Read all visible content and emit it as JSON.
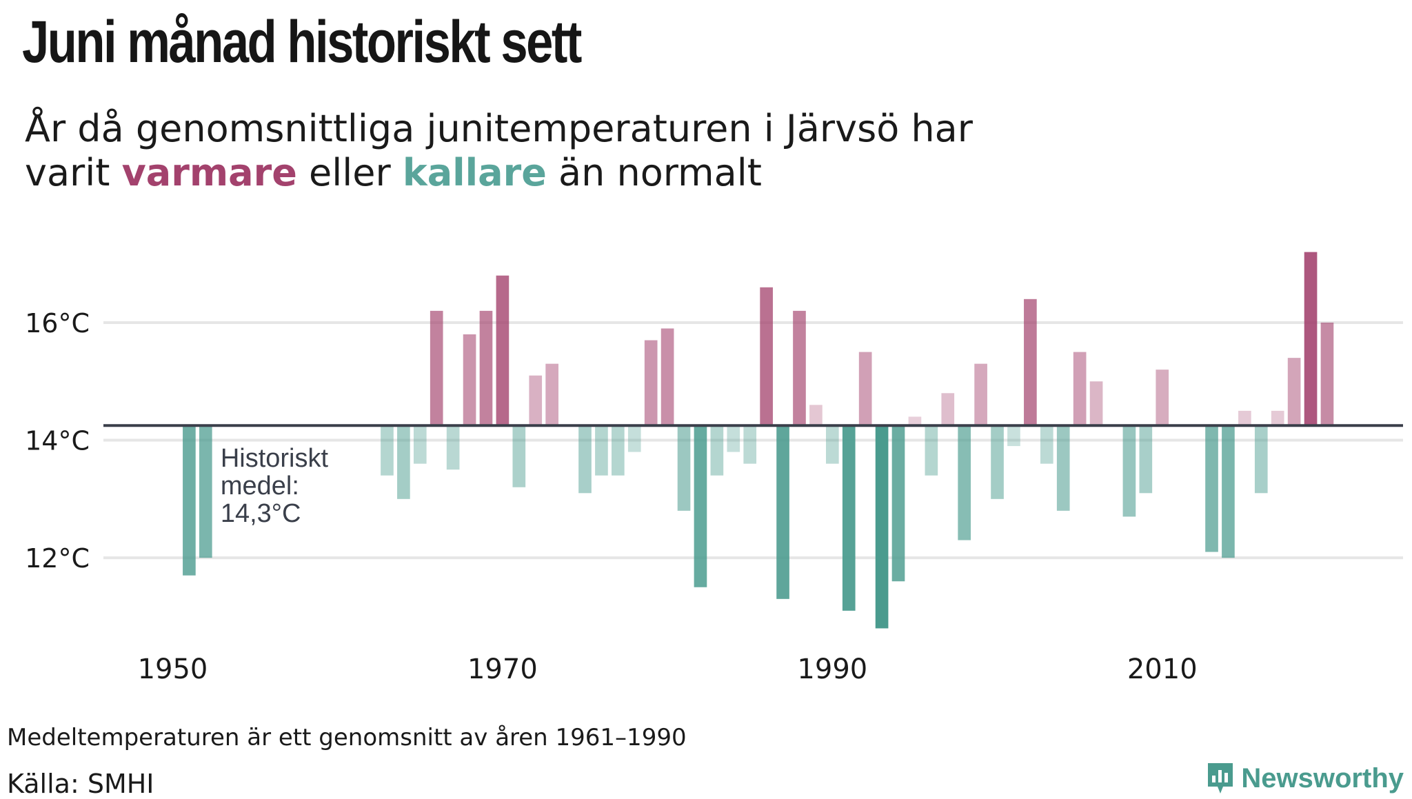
{
  "title": "Juni månad historiskt sett",
  "subtitle": {
    "line1": "År då genomsnittliga junitemperaturen  i Järvsö har",
    "prefix": "varit ",
    "warm_word": "varmare",
    "middle": " eller ",
    "cold_word": "kallare",
    "suffix": " än normalt"
  },
  "colors": {
    "warm": "#a3426d",
    "cold": "#4a9b8e",
    "baseline": "#3a3f4a",
    "grid": "#e6e6e6"
  },
  "footnote": "Medeltemperaturen är ett genomsnitt av åren 1961–1990",
  "source": "Källa: SMHI",
  "logo": {
    "text": "Newsworthy",
    "icon": "newsworthy-logo-icon"
  },
  "chart_data": {
    "type": "bar",
    "ylim": [
      10.7,
      17.5
    ],
    "xlim": [
      1945.8,
      2024.6
    ],
    "baseline": 14.25,
    "baseline_label": [
      "Historiskt",
      "medel:",
      "14,3°C"
    ],
    "y_ticks": [
      {
        "value": 12,
        "label": "12°C"
      },
      {
        "value": 14,
        "label": "14°C"
      },
      {
        "value": 16,
        "label": "16°C"
      }
    ],
    "x_ticks": [
      {
        "value": 1950,
        "label": "1950"
      },
      {
        "value": 1970,
        "label": "1970"
      },
      {
        "value": 1990,
        "label": "1990"
      },
      {
        "value": 2010,
        "label": "2010"
      }
    ],
    "grid": true,
    "years": [
      1951,
      1952,
      1963,
      1964,
      1965,
      1966,
      1967,
      1968,
      1969,
      1970,
      1971,
      1972,
      1973,
      1975,
      1976,
      1977,
      1978,
      1979,
      1980,
      1981,
      1982,
      1983,
      1984,
      1985,
      1986,
      1987,
      1988,
      1989,
      1990,
      1991,
      1992,
      1993,
      1994,
      1995,
      1996,
      1997,
      1998,
      1999,
      2000,
      2001,
      2002,
      2003,
      2004,
      2005,
      2006,
      2008,
      2009,
      2010,
      2013,
      2014,
      2015,
      2016,
      2017,
      2018,
      2019,
      2020
    ],
    "values": [
      11.7,
      12.0,
      13.4,
      13.0,
      13.6,
      16.2,
      13.5,
      15.8,
      16.2,
      16.8,
      13.2,
      15.1,
      15.3,
      13.1,
      13.4,
      13.4,
      13.8,
      15.7,
      15.9,
      12.8,
      11.5,
      13.4,
      13.8,
      13.6,
      16.6,
      11.3,
      16.2,
      14.6,
      13.6,
      11.1,
      15.5,
      10.8,
      11.6,
      14.4,
      13.4,
      14.8,
      12.3,
      15.3,
      13.0,
      13.9,
      16.4,
      13.6,
      12.8,
      15.5,
      15.0,
      12.7,
      13.1,
      15.2,
      12.1,
      12.0,
      14.5,
      13.1,
      14.5,
      15.4,
      17.2,
      16.0
    ]
  }
}
